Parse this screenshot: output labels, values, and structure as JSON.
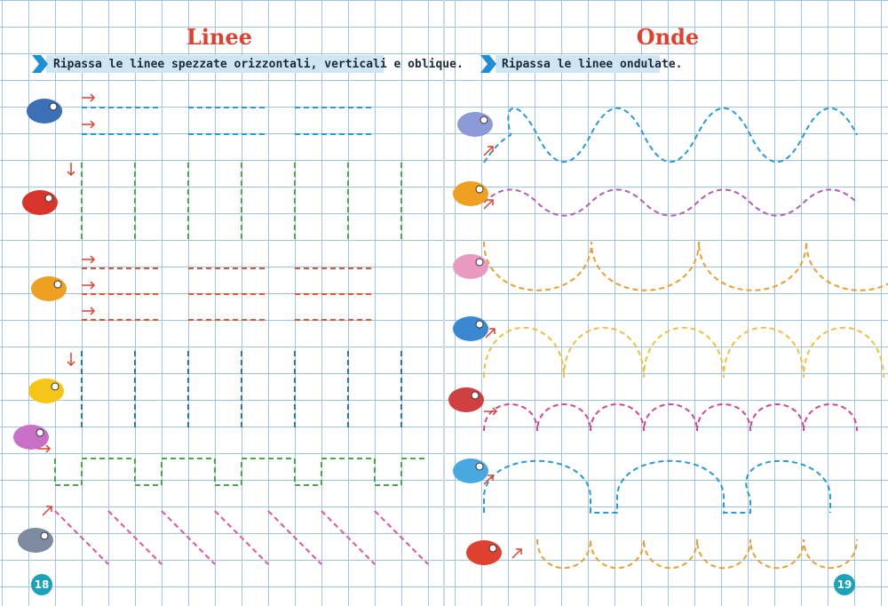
{
  "left": {
    "title": "Linee",
    "instruction": "Ripassa le linee spezzate orizzontali, verticali e oblique.",
    "page_number": "18"
  },
  "right": {
    "title": "Onde",
    "instruction": "Ripassa le linee ondulate.",
    "page_number": "19"
  }
}
